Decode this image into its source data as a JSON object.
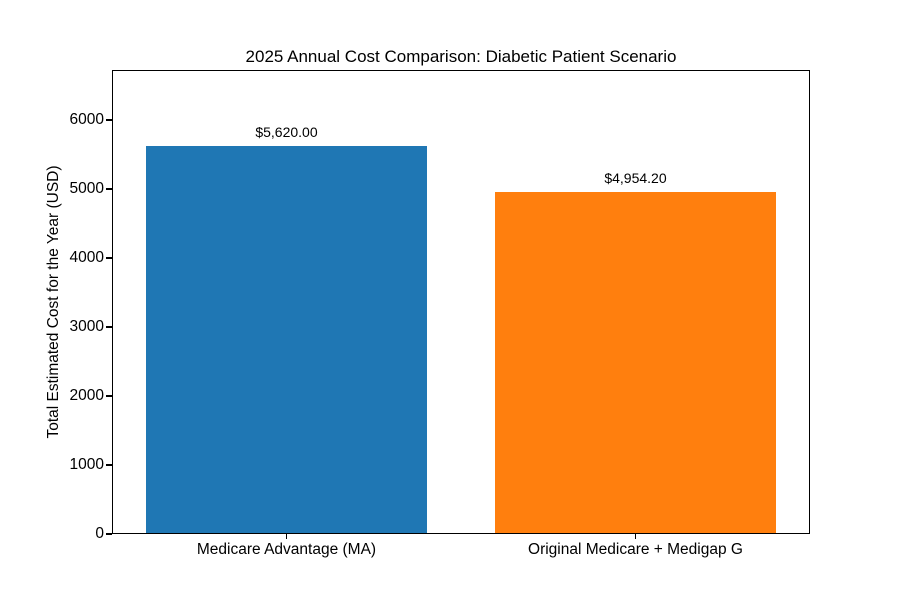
{
  "chart_data": {
    "type": "bar",
    "title": "2025 Annual Cost Comparison: Diabetic Patient Scenario",
    "ylabel": "Total Estimated Cost for the Year (USD)",
    "xlabel": "",
    "categories": [
      "Medicare Advantage (MA)",
      "Original Medicare + Medigap G"
    ],
    "values": [
      5620.0,
      4954.2
    ],
    "bar_labels": [
      "$5,620.00",
      "$4,954.20"
    ],
    "bar_colors": [
      "#1f77b4",
      "#ff7f0e"
    ],
    "yticks": [
      0,
      1000,
      2000,
      3000,
      4000,
      5000,
      6000
    ],
    "ylim": [
      0,
      6725
    ],
    "grid": false,
    "legend": "none",
    "background": "#ffffff",
    "text_color": "#000000"
  }
}
